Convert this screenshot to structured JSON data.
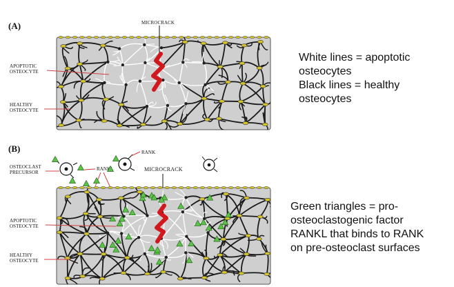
{
  "panel_a": {
    "letter": "(A)",
    "microcrack_label": "MICROCRACK",
    "apoptotic_label": [
      "APOPTOTIC",
      "OSTEOCYTE"
    ],
    "healthy_label": [
      "HEALTHY",
      "OSTEOCYTE"
    ],
    "legend": [
      "White lines = apoptotic",
      "osteocytes",
      "Black lines = healthy",
      "osteocytes"
    ]
  },
  "panel_b": {
    "letter": "(B)",
    "rank_label": "RANK",
    "rankl_label": "RANKL",
    "precursor_label": [
      "OSTEOCLAST",
      "PRECURSOR"
    ],
    "microcrack_label": "MICROCRACK",
    "apoptotic_label": [
      "APOPTOTIC",
      "OSTEOCYTE"
    ],
    "healthy_label": [
      "HEALTHY",
      "OSTEOCYTE"
    ],
    "legend": [
      "Green triangles = pro-",
      "osteoclastogenic factor",
      "RANKL that binds to RANK",
      "on pre-osteoclast surfaces"
    ]
  },
  "colors": {
    "bone_fill": "#cfcfcf",
    "healthy_network": "#1a1a1a",
    "apoptotic_network": "#ffffff",
    "microcrack": "#d0181f",
    "rankl_triangle": "#5cc24a",
    "lining_cells": "#d4c32a",
    "label_lines": "#d04040"
  }
}
